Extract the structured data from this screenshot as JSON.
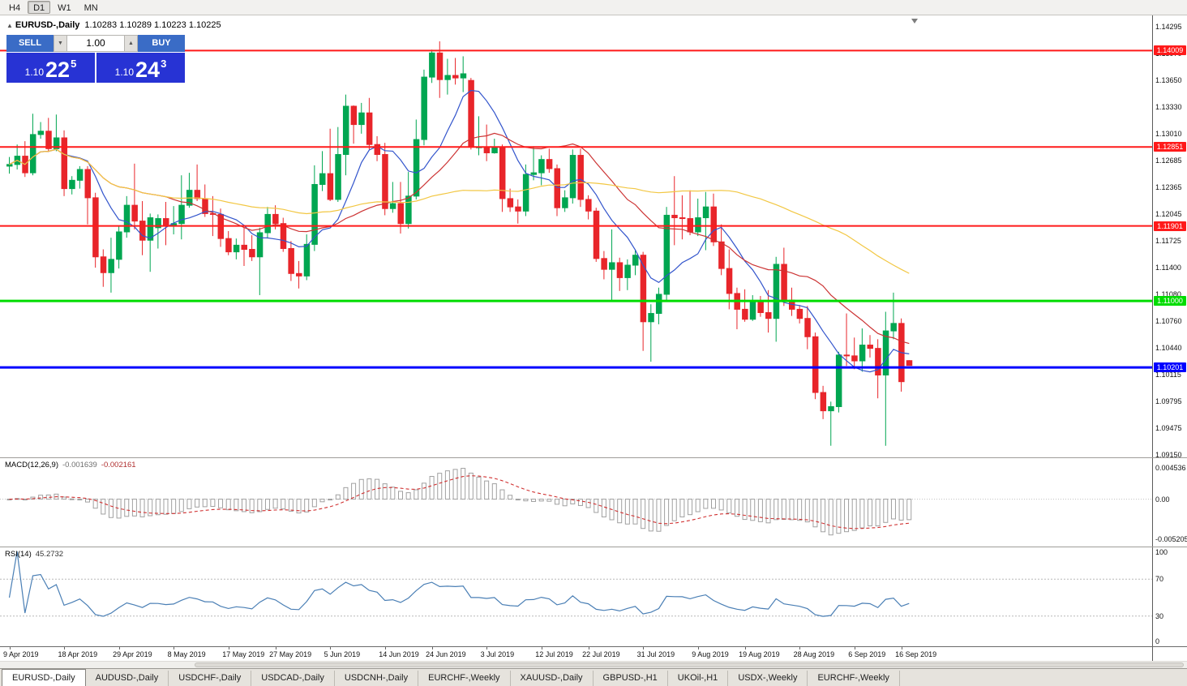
{
  "toolbar": {
    "timeframes": [
      "H4",
      "D1",
      "W1",
      "MN"
    ],
    "active": "D1"
  },
  "chart_header": {
    "collapse": "▲",
    "symbol": "EURUSD-,Daily",
    "ohlc": "1.10283 1.10289 1.10223 1.10225"
  },
  "trade_panel": {
    "sell": {
      "label": "SELL",
      "price_main": "1.10",
      "price_big": "22",
      "price_sup": "5"
    },
    "buy": {
      "label": "BUY",
      "price_main": "1.10",
      "price_big": "24",
      "price_sup": "3"
    },
    "lot": "1.00"
  },
  "icons": {
    "spinner_down": "▼",
    "spinner_up": "▲"
  },
  "price_axis": [
    "1.14295",
    "1.13970",
    "1.13650",
    "1.13330",
    "1.13010",
    "1.12685",
    "1.12365",
    "1.12045",
    "1.11725",
    "1.11400",
    "1.11080",
    "1.10760",
    "1.10440",
    "1.10115",
    "1.09795",
    "1.09475",
    "1.09150"
  ],
  "hlines": [
    {
      "price": 1.14009,
      "label": "1.14009",
      "color": "#ff1a1a",
      "width": 2
    },
    {
      "price": 1.12851,
      "label": "1.12851",
      "color": "#ff1a1a",
      "width": 2
    },
    {
      "price": 1.11901,
      "label": "1.11901",
      "color": "#ff1a1a",
      "width": 2
    },
    {
      "price": 1.11,
      "label": "1.11000",
      "color": "#00dc00",
      "width": 3
    },
    {
      "price": 1.10201,
      "label": "1.10201",
      "color": "#0000ff",
      "width": 3
    }
  ],
  "macd_panel": {
    "name": "MACD(12,26,9)",
    "value_main": "-0.001639",
    "value_signal": "-0.002161",
    "axis_top": "0.004536",
    "axis_zero": "0.00",
    "axis_bottom": "-0.005205"
  },
  "rsi_panel": {
    "name": "RSI(14)",
    "value": "45.2732",
    "axis": [
      "100",
      "70",
      "30",
      "0"
    ],
    "levels": [
      70,
      30
    ]
  },
  "date_axis": {
    "labels": [
      "9 Apr 2019",
      "18 Apr 2019",
      "29 Apr 2019",
      "8 May 2019",
      "17 May 2019",
      "27 May 2019",
      "5 Jun 2019",
      "14 Jun 2019",
      "24 Jun 2019",
      "3 Jul 2019",
      "12 Jul 2019",
      "22 Jul 2019",
      "31 Jul 2019",
      "9 Aug 2019",
      "19 Aug 2019",
      "28 Aug 2019",
      "6 Sep 2019",
      "16 Sep 2019"
    ],
    "indices": [
      0,
      7,
      14,
      21,
      28,
      34,
      41,
      48,
      54,
      61,
      68,
      74,
      81,
      88,
      94,
      101,
      108,
      114
    ]
  },
  "tabs": [
    "EURUSD-,Daily",
    "AUDUSD-,Daily",
    "USDCHF-,Daily",
    "USDCAD-,Daily",
    "USDCNH-,Daily",
    "EURCHF-,Weekly",
    "XAUUSD-,Daily",
    "GBPUSD-,H1",
    "UKOil-,H1",
    "USDX-,Weekly",
    "EURCHF-,Weekly"
  ],
  "active_tab": 0,
  "colors": {
    "bull": "#00a651",
    "bear": "#e8252a",
    "ma_fast": "#3355cc",
    "ma_mid": "#cc3333",
    "ma_slow": "#f2c743",
    "macd_hist_stroke": "#a0a0a0",
    "macd_hist_fill": "#ffffff",
    "macd_signal": "#d03030",
    "rsi_line": "#4a7fb5",
    "level_dotted": "#b8b8b8"
  },
  "indicators": {
    "moving_averages": [
      {
        "period": 8
      },
      {
        "period": 21
      },
      {
        "period": 55
      }
    ],
    "macd": {
      "fast": 12,
      "slow": 26,
      "signal": 9
    },
    "rsi": {
      "period": 14
    }
  },
  "chart_data": {
    "type": "candlestick",
    "symbol": "EURUSD-",
    "timeframe": "Daily",
    "ylim": [
      1.0915,
      1.14295
    ],
    "candles": [
      [
        1.1262,
        1.1273,
        1.1253,
        1.1264
      ],
      [
        1.1264,
        1.1288,
        1.1258,
        1.1274
      ],
      [
        1.1274,
        1.1292,
        1.1249,
        1.1254
      ],
      [
        1.1254,
        1.1325,
        1.1251,
        1.13
      ],
      [
        1.13,
        1.1315,
        1.1295,
        1.1304
      ],
      [
        1.1304,
        1.132,
        1.1279,
        1.1283
      ],
      [
        1.1283,
        1.1324,
        1.128,
        1.1296
      ],
      [
        1.1296,
        1.1305,
        1.1226,
        1.1235
      ],
      [
        1.1235,
        1.125,
        1.1228,
        1.1245
      ],
      [
        1.1245,
        1.1262,
        1.1235,
        1.1258
      ],
      [
        1.1258,
        1.1262,
        1.1192,
        1.1224
      ],
      [
        1.1224,
        1.123,
        1.114,
        1.1153
      ],
      [
        1.1153,
        1.1162,
        1.1117,
        1.1134
      ],
      [
        1.1134,
        1.1176,
        1.111,
        1.115
      ],
      [
        1.115,
        1.119,
        1.1139,
        1.1183
      ],
      [
        1.1183,
        1.1226,
        1.1176,
        1.1215
      ],
      [
        1.1215,
        1.1265,
        1.1186,
        1.1196
      ],
      [
        1.1196,
        1.122,
        1.1155,
        1.1173
      ],
      [
        1.1173,
        1.1205,
        1.1135,
        1.12
      ],
      [
        1.1188,
        1.1204,
        1.1163,
        1.1199
      ],
      [
        1.1199,
        1.1219,
        1.1167,
        1.119
      ],
      [
        1.119,
        1.1214,
        1.118,
        1.1193
      ],
      [
        1.1193,
        1.1251,
        1.1174,
        1.1215
      ],
      [
        1.1215,
        1.1254,
        1.1212,
        1.1233
      ],
      [
        1.1233,
        1.1264,
        1.122,
        1.1223
      ],
      [
        1.1223,
        1.124,
        1.1201,
        1.1205
      ],
      [
        1.1205,
        1.1226,
        1.1178,
        1.1204
      ],
      [
        1.1204,
        1.1211,
        1.1165,
        1.1175
      ],
      [
        1.1175,
        1.1184,
        1.1155,
        1.1159
      ],
      [
        1.1159,
        1.1175,
        1.115,
        1.1167
      ],
      [
        1.1167,
        1.1188,
        1.1142,
        1.1162
      ],
      [
        1.1162,
        1.1179,
        1.1148,
        1.1153
      ],
      [
        1.1153,
        1.1188,
        1.1107,
        1.1182
      ],
      [
        1.1182,
        1.1213,
        1.1175,
        1.1204
      ],
      [
        1.1204,
        1.1215,
        1.1186,
        1.1193
      ],
      [
        1.1193,
        1.12,
        1.1159,
        1.1163
      ],
      [
        1.1163,
        1.1172,
        1.1124,
        1.1133
      ],
      [
        1.1133,
        1.1148,
        1.1115,
        1.113
      ],
      [
        1.113,
        1.118,
        1.1125,
        1.1168
      ],
      [
        1.1168,
        1.1263,
        1.116,
        1.124
      ],
      [
        1.124,
        1.128,
        1.1232,
        1.1253
      ],
      [
        1.1253,
        1.1307,
        1.122,
        1.1222
      ],
      [
        1.1222,
        1.1309,
        1.1219,
        1.1276
      ],
      [
        1.1276,
        1.1348,
        1.1251,
        1.1334
      ],
      [
        1.1334,
        1.1335,
        1.1289,
        1.1312
      ],
      [
        1.1312,
        1.1338,
        1.1301,
        1.1326
      ],
      [
        1.1326,
        1.1344,
        1.1282,
        1.1288
      ],
      [
        1.1288,
        1.1298,
        1.1268,
        1.1276
      ],
      [
        1.1276,
        1.129,
        1.1203,
        1.1211
      ],
      [
        1.1211,
        1.1243,
        1.1206,
        1.1217
      ],
      [
        1.1217,
        1.1243,
        1.1181,
        1.1193
      ],
      [
        1.1193,
        1.1255,
        1.1187,
        1.1226
      ],
      [
        1.1226,
        1.1318,
        1.1222,
        1.1294
      ],
      [
        1.1294,
        1.1378,
        1.1287,
        1.1369
      ],
      [
        1.1369,
        1.1402,
        1.1362,
        1.1398
      ],
      [
        1.1398,
        1.1412,
        1.1344,
        1.1366
      ],
      [
        1.1366,
        1.1391,
        1.1348,
        1.1371
      ],
      [
        1.1371,
        1.1392,
        1.136,
        1.1368
      ],
      [
        1.1368,
        1.1394,
        1.1351,
        1.1373
      ],
      [
        1.1365,
        1.1368,
        1.1282,
        1.1285
      ],
      [
        1.1285,
        1.1322,
        1.1275,
        1.1285
      ],
      [
        1.1285,
        1.1312,
        1.1268,
        1.1278
      ],
      [
        1.1278,
        1.1295,
        1.1277,
        1.1285
      ],
      [
        1.1285,
        1.1288,
        1.1207,
        1.1223
      ],
      [
        1.1223,
        1.1235,
        1.1207,
        1.1213
      ],
      [
        1.1213,
        1.1222,
        1.1193,
        1.1208
      ],
      [
        1.1208,
        1.1264,
        1.1202,
        1.1252
      ],
      [
        1.1252,
        1.1286,
        1.1245,
        1.1254
      ],
      [
        1.1254,
        1.1275,
        1.1239,
        1.127
      ],
      [
        1.127,
        1.1283,
        1.1254,
        1.1259
      ],
      [
        1.1259,
        1.1264,
        1.1202,
        1.1212
      ],
      [
        1.1212,
        1.1233,
        1.1207,
        1.1224
      ],
      [
        1.1224,
        1.1282,
        1.1217,
        1.1275
      ],
      [
        1.1275,
        1.1283,
        1.1213,
        1.1222
      ],
      [
        1.1222,
        1.1227,
        1.1198,
        1.1208
      ],
      [
        1.1208,
        1.1212,
        1.1147,
        1.1151
      ],
      [
        1.1151,
        1.116,
        1.1126,
        1.1138
      ],
      [
        1.1138,
        1.1186,
        1.1101,
        1.1146
      ],
      [
        1.1146,
        1.1152,
        1.1112,
        1.1128
      ],
      [
        1.1128,
        1.115,
        1.1113,
        1.1143
      ],
      [
        1.1143,
        1.1162,
        1.1131,
        1.1155
      ],
      [
        1.1155,
        1.1159,
        1.104,
        1.1075
      ],
      [
        1.1075,
        1.1096,
        1.1027,
        1.1085
      ],
      [
        1.1085,
        1.1116,
        1.1072,
        1.1108
      ],
      [
        1.1108,
        1.1213,
        1.1101,
        1.1203
      ],
      [
        1.1203,
        1.125,
        1.1167,
        1.12
      ],
      [
        1.12,
        1.1227,
        1.1174,
        1.1199
      ],
      [
        1.1199,
        1.1233,
        1.1179,
        1.1183
      ],
      [
        1.1183,
        1.1223,
        1.1178,
        1.12
      ],
      [
        1.12,
        1.1231,
        1.1161,
        1.1213
      ],
      [
        1.1213,
        1.1229,
        1.1166,
        1.1171
      ],
      [
        1.1171,
        1.1192,
        1.1131,
        1.1139
      ],
      [
        1.1139,
        1.1162,
        1.109,
        1.1109
      ],
      [
        1.1109,
        1.1116,
        1.1066,
        1.109
      ],
      [
        1.109,
        1.1114,
        1.1075,
        1.1078
      ],
      [
        1.1078,
        1.1107,
        1.1076,
        1.1099
      ],
      [
        1.1099,
        1.1106,
        1.1081,
        1.1086
      ],
      [
        1.1086,
        1.1113,
        1.1062,
        1.1079
      ],
      [
        1.1079,
        1.1153,
        1.1051,
        1.1144
      ],
      [
        1.1144,
        1.1164,
        1.1094,
        1.1101
      ],
      [
        1.1101,
        1.1116,
        1.1082,
        1.109
      ],
      [
        1.109,
        1.1095,
        1.1073,
        1.1079
      ],
      [
        1.1079,
        1.1094,
        1.1042,
        1.1057
      ],
      [
        1.1057,
        1.1062,
        1.0982,
        1.099
      ],
      [
        1.099,
        1.0998,
        1.0958,
        1.0968
      ],
      [
        1.0968,
        1.0979,
        1.0926,
        1.0973
      ],
      [
        1.0973,
        1.1039,
        1.0966,
        1.1035
      ],
      [
        1.1035,
        1.1085,
        1.1022,
        1.1034
      ],
      [
        1.1034,
        1.1056,
        1.1018,
        1.1028
      ],
      [
        1.1028,
        1.1067,
        1.1015,
        1.1047
      ],
      [
        1.1047,
        1.1059,
        1.1032,
        1.1043
      ],
      [
        1.1043,
        1.1054,
        1.0983,
        1.1011
      ],
      [
        1.1011,
        1.1087,
        1.0926,
        1.1064
      ],
      [
        1.1064,
        1.111,
        1.1054,
        1.1073
      ],
      [
        1.1073,
        1.1079,
        1.0991,
        1.1003
      ],
      [
        1.10283,
        1.10289,
        1.10223,
        1.10225
      ]
    ]
  }
}
